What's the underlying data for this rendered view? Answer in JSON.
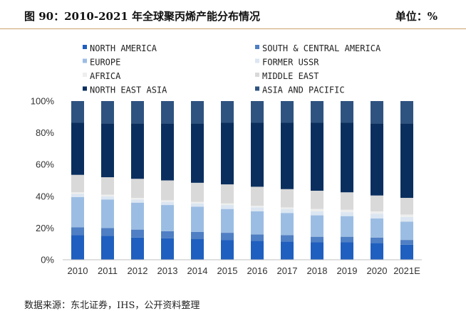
{
  "header": {
    "title": "图 90：2010-2021 年全球聚丙烯产能分布情况",
    "unit": "单位：%"
  },
  "footer": {
    "source": "数据来源：东北证券，IHS，公开资料整理"
  },
  "chart_data": {
    "type": "bar",
    "stacked": true,
    "title": "",
    "xlabel": "",
    "ylabel": "",
    "ylim": [
      0,
      100
    ],
    "yticks": [
      "0%",
      "20%",
      "40%",
      "60%",
      "80%",
      "100%"
    ],
    "grid": false,
    "legend_position": "top",
    "categories": [
      "2010",
      "2011",
      "2012",
      "2013",
      "2014",
      "2015",
      "2016",
      "2017",
      "2018",
      "2019",
      "2020",
      "2021E"
    ],
    "series": [
      {
        "name": "NORTH AMERICA",
        "color": "#1f5fbf",
        "values": [
          15.5,
          15,
          14,
          13.5,
          13,
          12.5,
          12,
          11.5,
          11,
          11,
          10.5,
          9.5
        ]
      },
      {
        "name": "SOUTH & CENTRAL AMERICA",
        "color": "#4f7fc4",
        "values": [
          5,
          5,
          5,
          4.5,
          4.5,
          4.5,
          4,
          4,
          3.5,
          3.5,
          3.5,
          3
        ]
      },
      {
        "name": "EUROPE",
        "color": "#9cbde3",
        "values": [
          19,
          18,
          17,
          16.5,
          16,
          15,
          14.5,
          14,
          13.5,
          13,
          12,
          11.5
        ]
      },
      {
        "name": "FORMER USSR",
        "color": "#dbe6f2",
        "values": [
          2,
          2,
          2,
          2,
          2,
          2.5,
          2.5,
          2.5,
          2.5,
          2.5,
          3,
          3
        ]
      },
      {
        "name": "AFRICA",
        "color": "#eeeeee",
        "values": [
          1,
          1,
          1,
          1,
          1,
          1,
          1,
          1,
          1.5,
          1.5,
          1.5,
          1.5
        ]
      },
      {
        "name": "MIDDLE EAST",
        "color": "#d9d9d9",
        "values": [
          11,
          11,
          12,
          12.5,
          12,
          12,
          12,
          11.5,
          11.5,
          11,
          10,
          10.5
        ]
      },
      {
        "name": "NORTH EAST ASIA",
        "color": "#0a2f5f",
        "values": [
          33,
          34,
          35,
          36,
          37.5,
          39,
          40.5,
          42,
          43,
          44,
          45.5,
          47
        ]
      },
      {
        "name": "ASIA AND PACIFIC",
        "color": "#2e5380",
        "values": [
          13.5,
          14,
          14,
          14,
          14,
          13.5,
          13.5,
          13.5,
          13.5,
          13.5,
          14,
          14
        ]
      }
    ]
  }
}
